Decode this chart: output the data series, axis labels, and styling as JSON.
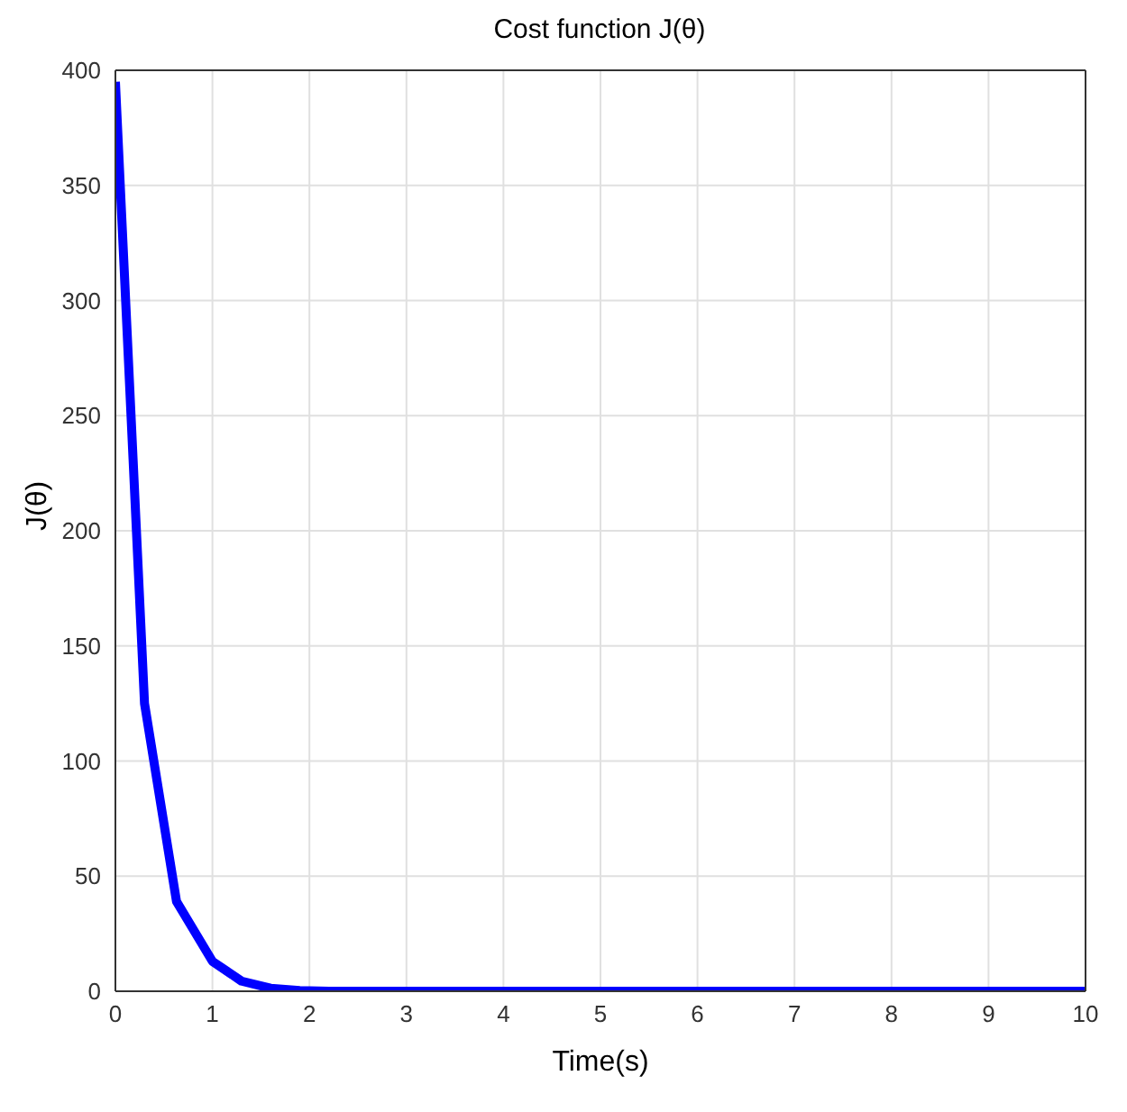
{
  "chart_data": {
    "type": "line",
    "title": "Cost function J(θ)",
    "xlabel": "Time(s)",
    "ylabel": "J(θ)",
    "x": [
      0,
      0.3,
      0.63,
      1.0,
      1.3,
      1.6,
      1.9,
      2.2,
      3,
      4,
      5,
      6,
      7,
      8,
      9,
      10
    ],
    "series": [
      {
        "color": "#0000ff",
        "values": [
          395,
          125,
          39,
          13,
          4.4,
          1.3,
          0.3,
          0,
          0,
          0,
          0,
          0,
          0,
          0,
          0,
          0
        ]
      }
    ],
    "xlim": [
      0,
      10
    ],
    "xticks": [
      0,
      1,
      2,
      3,
      4,
      5,
      6,
      7,
      8,
      9,
      10
    ],
    "ylim": [
      0,
      400
    ],
    "yticks": [
      0,
      50,
      100,
      150,
      200,
      250,
      300,
      350,
      400
    ],
    "grid": true,
    "legend": false,
    "marker": "none",
    "line_style": "solid"
  }
}
